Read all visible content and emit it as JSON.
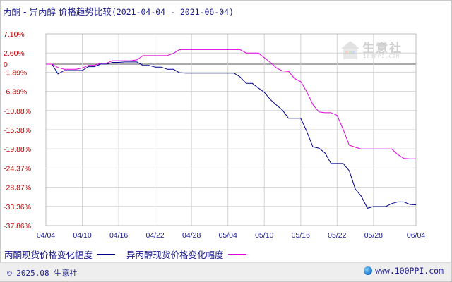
{
  "title": {
    "main": "丙酮 - 异丙醇 价格趋势比较",
    "range": "(2021-04-04 - 2021-06-04)"
  },
  "watermark": {
    "text": "生意社",
    "url": "100PPI.COM"
  },
  "footer": {
    "copyright": "© 2025.08 生意社",
    "site": "www.100PPI.com"
  },
  "colors": {
    "series1": "#00008b",
    "series2": "#e000e0",
    "ytick": "#c00000",
    "xtick": "#1a1a8c",
    "grid": "#d4d4d4",
    "zero": "#555555"
  },
  "chart_data": {
    "type": "line",
    "title": "丙酮 - 异丙醇 价格趋势比较",
    "xlabel": "",
    "ylabel": "",
    "y_unit": "%",
    "ylim": [
      -37.86,
      7.1
    ],
    "yticks": [
      7.1,
      2.6,
      -1.89,
      -6.39,
      -10.88,
      -15.38,
      -19.88,
      -24.37,
      -28.87,
      -33.36,
      -37.86
    ],
    "ytick_labels": [
      "7.10%",
      "2.60%",
      "-1.89%",
      "-6.39%",
      "-10.88%",
      "-15.38%",
      "-19.88%",
      "-24.37%",
      "-28.87%",
      "-33.36%",
      "-37.86%"
    ],
    "zero_label": "0",
    "x_tick_labels": [
      "04/04",
      "04/10",
      "04/16",
      "04/22",
      "04/28",
      "05/04",
      "05/10",
      "05/16",
      "05/22",
      "05/28",
      "06/04"
    ],
    "x_days": 61,
    "grid": true,
    "legend_position": "bottom-left",
    "series": [
      {
        "name": "丙酮现货价格变化幅度",
        "color": "#00008b",
        "points": [
          [
            0,
            0.0
          ],
          [
            1,
            0.0
          ],
          [
            2,
            -2.3
          ],
          [
            3,
            -1.5
          ],
          [
            4,
            -1.5
          ],
          [
            5,
            -1.5
          ],
          [
            6,
            -1.5
          ],
          [
            7,
            -0.6
          ],
          [
            8,
            -0.6
          ],
          [
            9,
            0.0
          ],
          [
            10,
            0.0
          ],
          [
            11,
            0.4
          ],
          [
            12,
            0.4
          ],
          [
            13,
            0.5
          ],
          [
            14,
            0.5
          ],
          [
            15,
            0.5
          ],
          [
            16,
            -0.3
          ],
          [
            17,
            -0.3
          ],
          [
            18,
            -0.7
          ],
          [
            19,
            -0.7
          ],
          [
            20,
            -1.2
          ],
          [
            21,
            -1.2
          ],
          [
            22,
            -2.0
          ],
          [
            23,
            -2.1
          ],
          [
            24,
            -2.1
          ],
          [
            25,
            -2.1
          ],
          [
            26,
            -2.1
          ],
          [
            27,
            -2.1
          ],
          [
            28,
            -2.1
          ],
          [
            29,
            -2.1
          ],
          [
            30,
            -2.1
          ],
          [
            31,
            -2.1
          ],
          [
            32,
            -3.0
          ],
          [
            33,
            -4.5
          ],
          [
            34,
            -4.5
          ],
          [
            35,
            -5.6
          ],
          [
            36,
            -6.6
          ],
          [
            37,
            -8.3
          ],
          [
            38,
            -9.6
          ],
          [
            39,
            -10.8
          ],
          [
            40,
            -12.7
          ],
          [
            41,
            -12.7
          ],
          [
            42,
            -12.7
          ],
          [
            43,
            -15.8
          ],
          [
            44,
            -19.4
          ],
          [
            45,
            -19.7
          ],
          [
            46,
            -20.8
          ],
          [
            47,
            -23.3
          ],
          [
            48,
            -23.3
          ],
          [
            49,
            -23.3
          ],
          [
            50,
            -25.0
          ],
          [
            51,
            -29.3
          ],
          [
            52,
            -31.0
          ],
          [
            53,
            -33.8
          ],
          [
            54,
            -33.4
          ],
          [
            55,
            -33.4
          ],
          [
            56,
            -33.4
          ],
          [
            57,
            -32.7
          ],
          [
            58,
            -32.3
          ],
          [
            59,
            -32.3
          ],
          [
            60,
            -32.9
          ],
          [
            61,
            -33.0
          ]
        ]
      },
      {
        "name": "异丙醇现货价格变化幅度",
        "color": "#e000e0",
        "points": [
          [
            0,
            0.0
          ],
          [
            1,
            0.0
          ],
          [
            2,
            -0.8
          ],
          [
            3,
            -1.2
          ],
          [
            4,
            -1.2
          ],
          [
            5,
            -1.2
          ],
          [
            6,
            -0.9
          ],
          [
            7,
            -0.3
          ],
          [
            8,
            -0.3
          ],
          [
            9,
            0.2
          ],
          [
            10,
            0.2
          ],
          [
            11,
            0.8
          ],
          [
            12,
            0.8
          ],
          [
            13,
            0.8
          ],
          [
            14,
            0.8
          ],
          [
            15,
            1.0
          ],
          [
            16,
            2.0
          ],
          [
            17,
            2.0
          ],
          [
            18,
            2.0
          ],
          [
            19,
            2.0
          ],
          [
            20,
            2.0
          ],
          [
            21,
            2.5
          ],
          [
            22,
            3.4
          ],
          [
            23,
            3.4
          ],
          [
            24,
            3.4
          ],
          [
            25,
            3.4
          ],
          [
            26,
            3.4
          ],
          [
            27,
            3.4
          ],
          [
            28,
            3.4
          ],
          [
            29,
            3.4
          ],
          [
            30,
            3.4
          ],
          [
            31,
            3.4
          ],
          [
            32,
            3.4
          ],
          [
            33,
            2.6
          ],
          [
            34,
            2.6
          ],
          [
            35,
            2.6
          ],
          [
            36,
            1.5
          ],
          [
            37,
            0.4
          ],
          [
            38,
            -0.9
          ],
          [
            39,
            -1.6
          ],
          [
            40,
            -1.7
          ],
          [
            41,
            -3.4
          ],
          [
            42,
            -4.1
          ],
          [
            43,
            -6.5
          ],
          [
            44,
            -9.5
          ],
          [
            45,
            -11.2
          ],
          [
            46,
            -11.4
          ],
          [
            47,
            -11.4
          ],
          [
            48,
            -12.0
          ],
          [
            49,
            -15.3
          ],
          [
            50,
            -19.0
          ],
          [
            51,
            -19.5
          ],
          [
            52,
            -19.9
          ],
          [
            53,
            -19.9
          ],
          [
            54,
            -19.9
          ],
          [
            55,
            -19.9
          ],
          [
            56,
            -19.9
          ],
          [
            57,
            -19.9
          ],
          [
            58,
            -21.2
          ],
          [
            59,
            -22.1
          ],
          [
            60,
            -22.2
          ],
          [
            61,
            -22.2
          ]
        ]
      }
    ]
  }
}
